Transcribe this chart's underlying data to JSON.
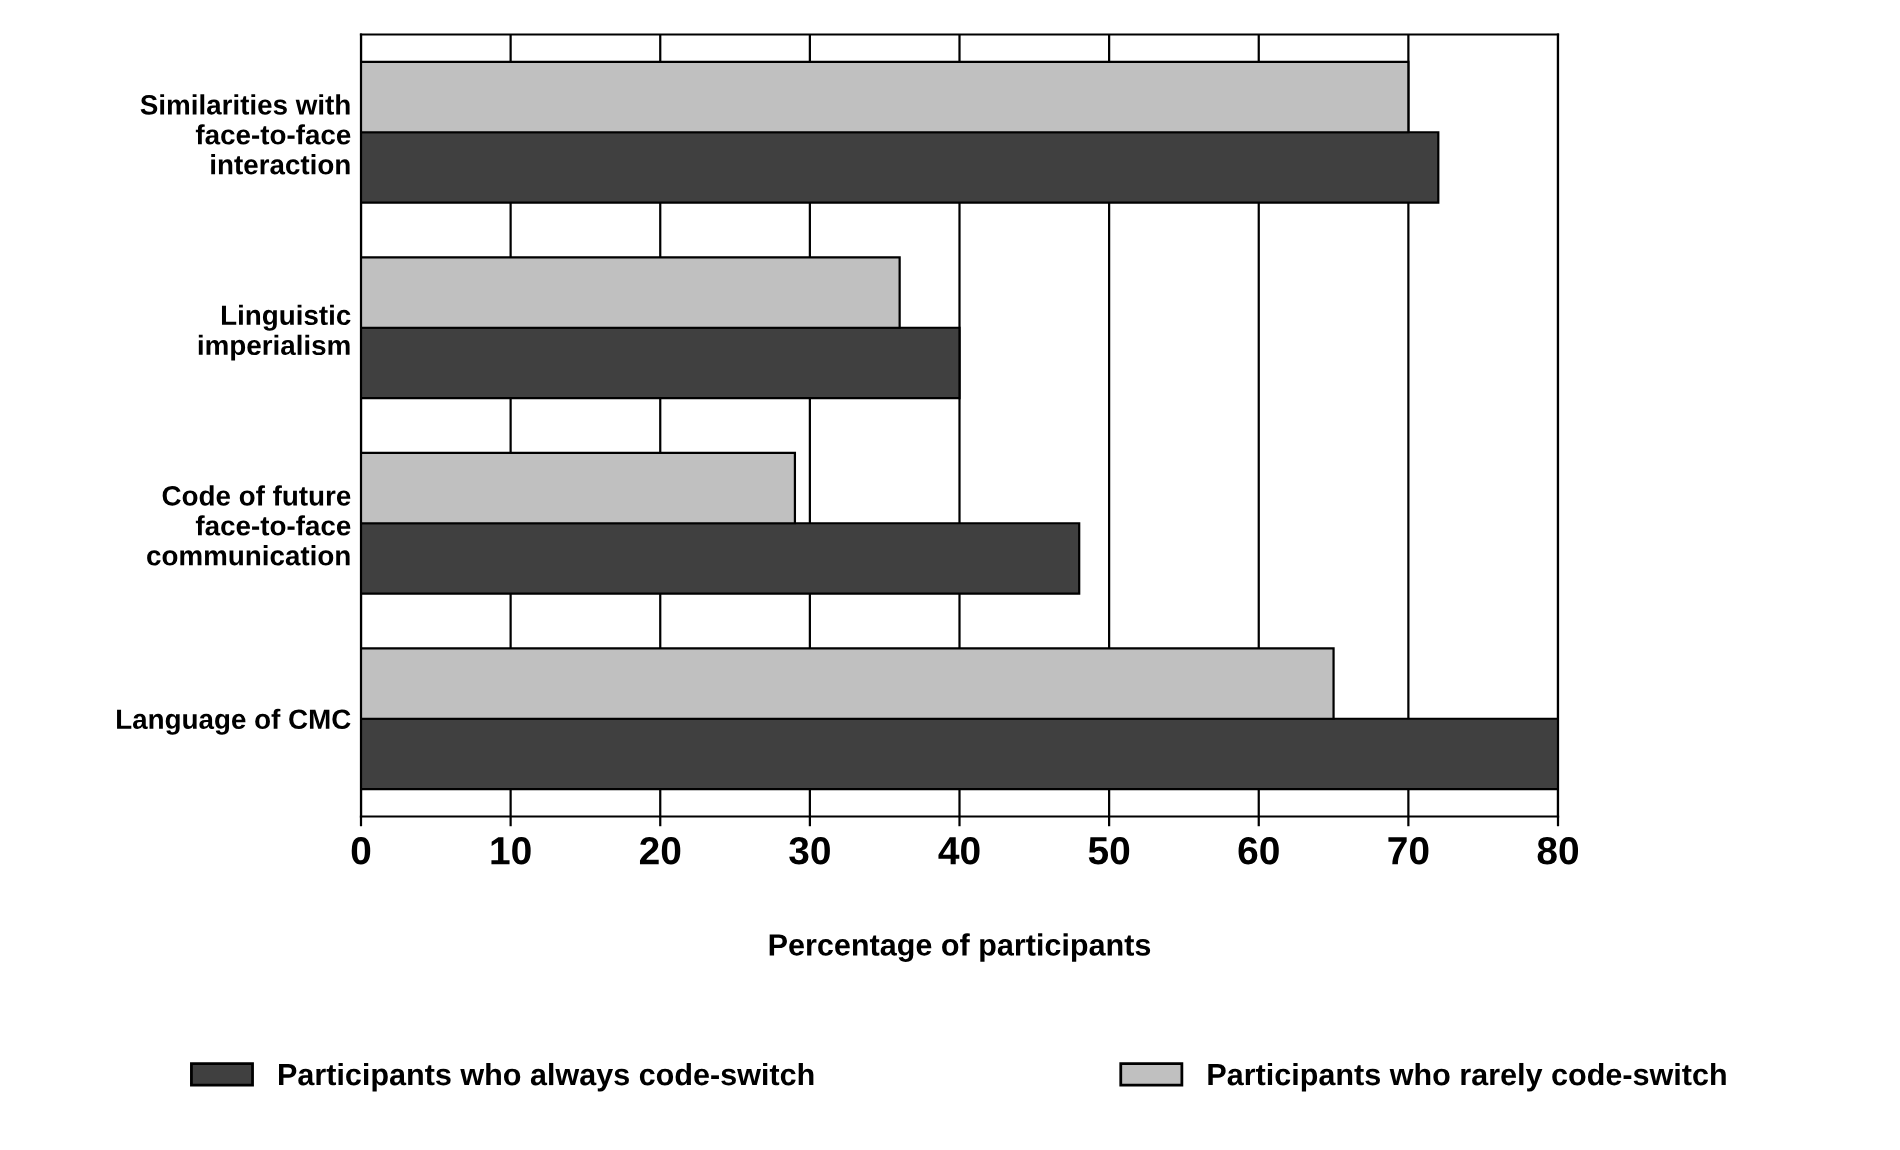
{
  "chart_data": {
    "type": "bar",
    "orientation": "horizontal",
    "xlabel": "Percentage of participants",
    "categories": [
      "Similarities with\nface-to-face\ninteraction",
      "Linguistic\nimperialism",
      "Code of future\nface-to-face\ncommunication",
      "Language of CMC"
    ],
    "series": [
      {
        "name": "Participants who always code-switch",
        "color": "#404040",
        "values": [
          72,
          40,
          48,
          80
        ]
      },
      {
        "name": "Participants who rarely code-switch",
        "color": "#c0c0c0",
        "values": [
          70,
          36,
          29,
          65
        ]
      }
    ],
    "xlim": [
      0,
      80
    ],
    "xticks": [
      0,
      10,
      20,
      30,
      40,
      50,
      60,
      70,
      80
    ],
    "grid": "x",
    "legend": "bottom"
  }
}
